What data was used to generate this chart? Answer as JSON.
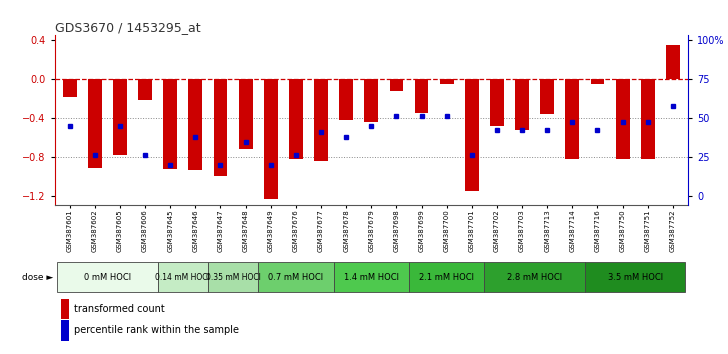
{
  "title": "GDS3670 / 1453295_at",
  "samples": [
    "GSM387601",
    "GSM387602",
    "GSM387605",
    "GSM387606",
    "GSM387645",
    "GSM387646",
    "GSM387647",
    "GSM387648",
    "GSM387649",
    "GSM387676",
    "GSM387677",
    "GSM387678",
    "GSM387679",
    "GSM387698",
    "GSM387699",
    "GSM387700",
    "GSM387701",
    "GSM387702",
    "GSM387703",
    "GSM387713",
    "GSM387714",
    "GSM387716",
    "GSM387750",
    "GSM387751",
    "GSM387752"
  ],
  "bar_values": [
    -0.18,
    -0.92,
    -0.78,
    -0.22,
    -0.93,
    -0.94,
    -1.0,
    -0.72,
    -1.23,
    -0.82,
    -0.84,
    -0.42,
    -0.44,
    -0.12,
    -0.35,
    -0.05,
    -1.15,
    -0.48,
    -0.52,
    -0.36,
    -0.82,
    -0.05,
    -0.82,
    -0.82,
    0.35
  ],
  "dot_values": [
    -0.48,
    -0.78,
    -0.48,
    -0.78,
    -0.88,
    -0.6,
    -0.88,
    -0.65,
    -0.88,
    -0.78,
    -0.55,
    -0.6,
    -0.48,
    -0.38,
    -0.38,
    -0.38,
    -0.78,
    -0.52,
    -0.52,
    -0.52,
    -0.44,
    -0.52,
    -0.44,
    -0.44,
    -0.28
  ],
  "dose_groups": [
    {
      "label": "0 mM HOCl",
      "count": 4,
      "color": "#eafaea"
    },
    {
      "label": "0.14 mM HOCl",
      "count": 2,
      "color": "#c5ecc5"
    },
    {
      "label": "0.35 mM HOCl",
      "count": 2,
      "color": "#a8dfa8"
    },
    {
      "label": "0.7 mM HOCl",
      "count": 3,
      "color": "#6dcf6d"
    },
    {
      "label": "1.4 mM HOCl",
      "count": 3,
      "color": "#4ec94e"
    },
    {
      "label": "2.1 mM HOCl",
      "count": 3,
      "color": "#3ab83a"
    },
    {
      "label": "2.8 mM HOCl",
      "count": 4,
      "color": "#2da02d"
    },
    {
      "label": "3.5 mM HOCl",
      "count": 4,
      "color": "#1f8c1f"
    }
  ],
  "ylim": [
    -1.3,
    0.45
  ],
  "yticks_left": [
    -1.2,
    -0.8,
    -0.4,
    0.0,
    0.4
  ],
  "bar_color": "#cc0000",
  "dot_color": "#0000cc",
  "hline_color": "#cc0000",
  "grid_color": "#888888",
  "bg_color": "#ffffff",
  "sample_label_fontsize": 5.5,
  "dose_label_fontsize": 6.5,
  "legend_fontsize": 7,
  "title_fontsize": 9
}
